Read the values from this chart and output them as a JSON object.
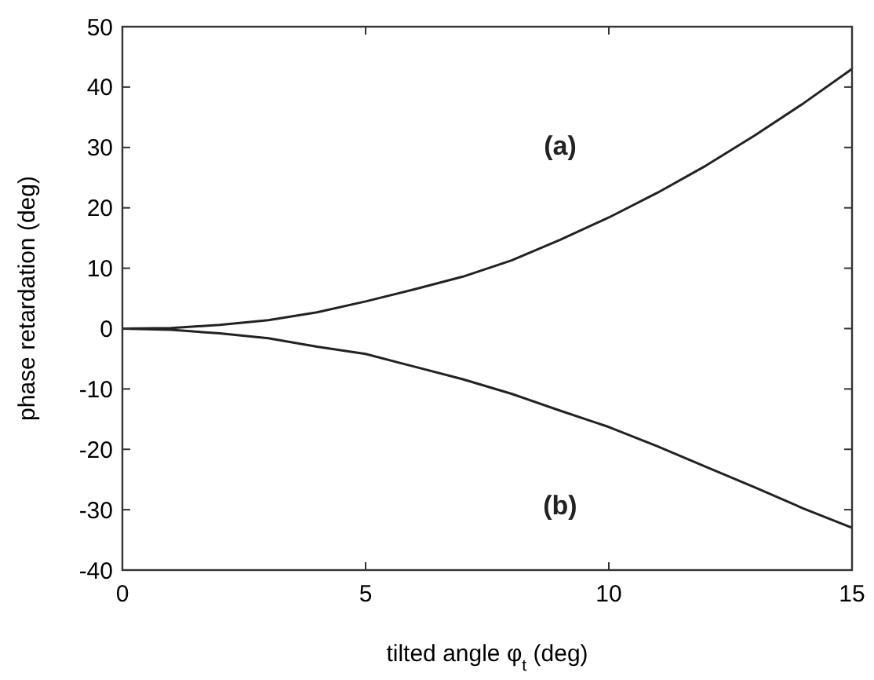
{
  "chart_data": {
    "type": "line",
    "xlabel": "tilted angle φ$_{t}$ (deg)",
    "ylabel": "phase retardation (deg)",
    "x": [
      0,
      1,
      2,
      3,
      4,
      5,
      6,
      7,
      8,
      9,
      10,
      11,
      12,
      13,
      14,
      15
    ],
    "series": [
      {
        "name": "(a)",
        "color": "#222222",
        "values": [
          0,
          0.1,
          0.6,
          1.4,
          2.7,
          4.5,
          6.5,
          8.6,
          11.3,
          14.7,
          18.4,
          22.5,
          27,
          32,
          37.3,
          43
        ]
      },
      {
        "name": "(b)",
        "color": "#222222",
        "values": [
          0,
          -0.2,
          -0.8,
          -1.6,
          -3,
          -4.2,
          -6.3,
          -8.4,
          -10.8,
          -13.6,
          -16.3,
          -19.5,
          -22.9,
          -26.3,
          -29.8,
          -33
        ]
      }
    ],
    "xlim": [
      0,
      15
    ],
    "xticks": [
      0,
      5,
      10,
      15
    ],
    "ylim": [
      -40,
      50
    ],
    "yticks": [
      -40,
      -30,
      -20,
      -10,
      0,
      10,
      20,
      30,
      40,
      50
    ],
    "grid": false,
    "marker": "none",
    "line_style": "solid"
  }
}
